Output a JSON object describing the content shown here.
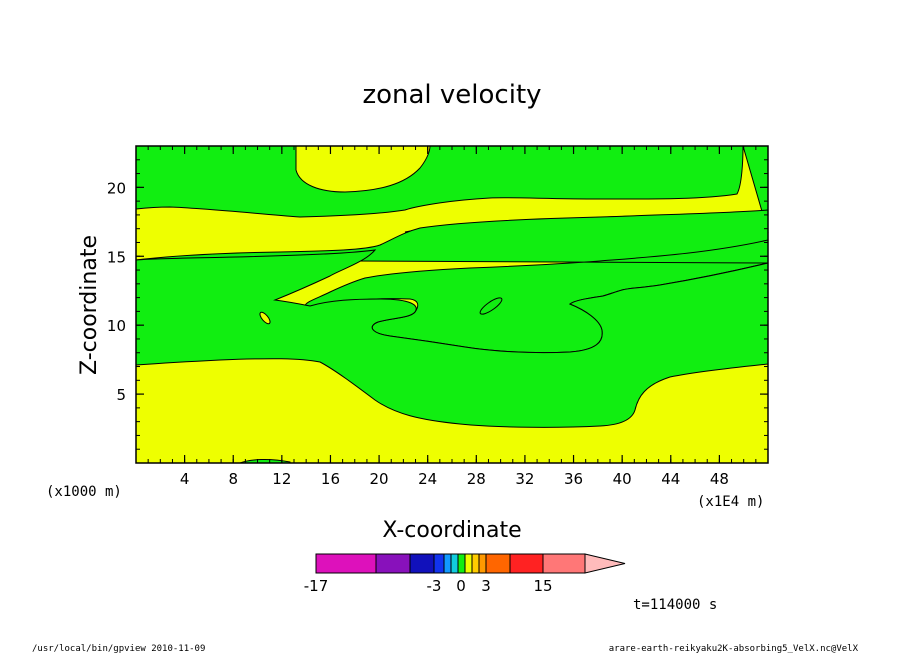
{
  "chart_data": {
    "type": "contour",
    "title": "zonal velocity",
    "xlabel": "X-coordinate",
    "ylabel": "Z-coordinate",
    "x_scale_note": "(x1E4 m)",
    "y_scale_note": "(x1000 m)",
    "xlim": [
      0,
      52
    ],
    "ylim": [
      0,
      23
    ],
    "x_ticks": [
      4,
      8,
      12,
      16,
      20,
      24,
      28,
      32,
      36,
      40,
      44,
      48
    ],
    "y_ticks": [
      5,
      10,
      15,
      20
    ],
    "colorbar": {
      "tick_labels": [
        "-17",
        "-3",
        "0",
        "3",
        "15"
      ],
      "levels": [
        -17,
        -13,
        -9,
        -3,
        -2,
        -1,
        0,
        1,
        2,
        3,
        5,
        9,
        15
      ],
      "colors": [
        "#dd11bb",
        "#8811bb",
        "#1111bb",
        "#1133ee",
        "#1199ff",
        "#11ccdd",
        "#11ee11",
        "#eeff00",
        "#ffcc00",
        "#ff9900",
        "#ff6600",
        "#ff2222",
        "#ff7777",
        "#ffbbbb"
      ]
    },
    "field_colors": {
      "negative_small": "#11ee11",
      "positive_small": "#eeff00",
      "contour": "#000000"
    },
    "time_label": "t=114000 s"
  },
  "footer": {
    "left": "/usr/local/bin/gpview  2010-11-09",
    "right": "arare-earth-reikyaku2K-absorbing5_VelX.nc@VelX"
  }
}
